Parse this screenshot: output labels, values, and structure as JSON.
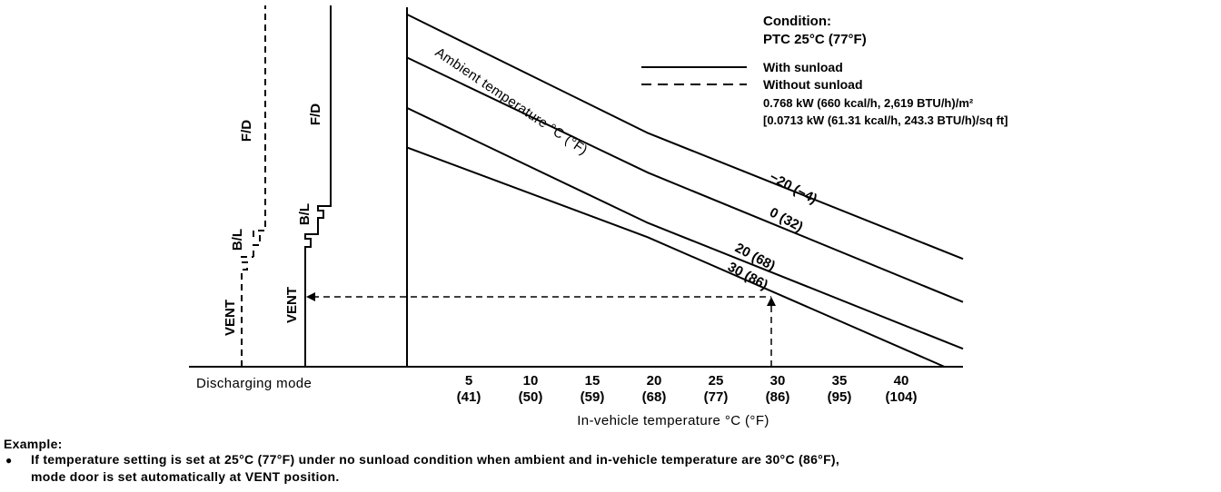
{
  "chart_data": {
    "type": "line",
    "xlabel": "In-vehicle temperature °C (°F)",
    "x_ticks": [
      {
        "c": 5,
        "label": "5",
        "f_label": "(41)"
      },
      {
        "c": 10,
        "label": "10",
        "f_label": "(50)"
      },
      {
        "c": 15,
        "label": "15",
        "f_label": "(59)"
      },
      {
        "c": 20,
        "label": "20",
        "f_label": "(68)"
      },
      {
        "c": 25,
        "label": "25",
        "f_label": "(77)"
      },
      {
        "c": 30,
        "label": "30",
        "f_label": "(86)"
      },
      {
        "c": 35,
        "label": "35",
        "f_label": "(95)"
      },
      {
        "c": 40,
        "label": "40",
        "f_label": "(104)"
      }
    ],
    "xlim": [
      0,
      45
    ],
    "ylim": [
      0,
      100
    ],
    "family_label": "Ambient temperature °C (°F)",
    "series": [
      {
        "name": "−20 (−4)",
        "points": [
          [
            0,
            98
          ],
          [
            19.5,
            65
          ],
          [
            45,
            30
          ]
        ]
      },
      {
        "name": "0 (32)",
        "points": [
          [
            0,
            86
          ],
          [
            19.5,
            54
          ],
          [
            45,
            18
          ]
        ]
      },
      {
        "name": "20 (68)",
        "points": [
          [
            0,
            72
          ],
          [
            19.5,
            40
          ],
          [
            45,
            5
          ]
        ]
      },
      {
        "name": "30 (86)",
        "points": [
          [
            0,
            61
          ],
          [
            19.5,
            36
          ],
          [
            43.5,
            0
          ]
        ]
      }
    ],
    "discharging_mode": {
      "label": "Discharging mode",
      "modes": [
        "VENT",
        "B/L",
        "F/D"
      ],
      "with_sunload": {
        "vent_to_bl": 36,
        "bl_to_fd": 41
      },
      "without_sunload": {
        "vent_to_bl": 28,
        "bl_to_fd": 38
      }
    },
    "example_point": {
      "x": 30,
      "y": 19
    }
  },
  "legend": {
    "condition_title": "Condition:",
    "condition_value": "PTC 25°C (77°F)",
    "solid_label": "With sunload",
    "dashed_label": "Without sunload",
    "sunload_line1": "0.768 kW (660 kcal/h, 2,619 BTU/h)/m²",
    "sunload_line2": "[0.0713 kW (61.31 kcal/h, 243.3 BTU/h)/sq ft]"
  },
  "example": {
    "title": "Example:",
    "bullet": "●",
    "line1": "If temperature setting is set at 25°C (77°F) under no sunload condition when ambient and in-vehicle temperature are 30°C (86°F),",
    "line2": "mode door is set automatically at VENT position."
  }
}
